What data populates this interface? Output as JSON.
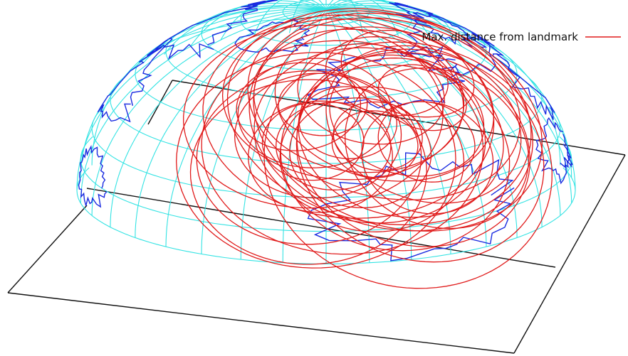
{
  "legend": {
    "label": "Max. distance from landmark",
    "placement": "top-right"
  },
  "colors": {
    "background": "#ffffff",
    "hemisphere_grid": "#33e3e3",
    "coastlines": "#1a2be0",
    "distance_rings": "#e01a1a",
    "base_plane": "#111111"
  },
  "projection": {
    "type": "upper-hemisphere",
    "latitude_step_deg": 10,
    "longitude_step_deg": 10
  },
  "rings": {
    "count": 40,
    "description_hidden": true
  }
}
